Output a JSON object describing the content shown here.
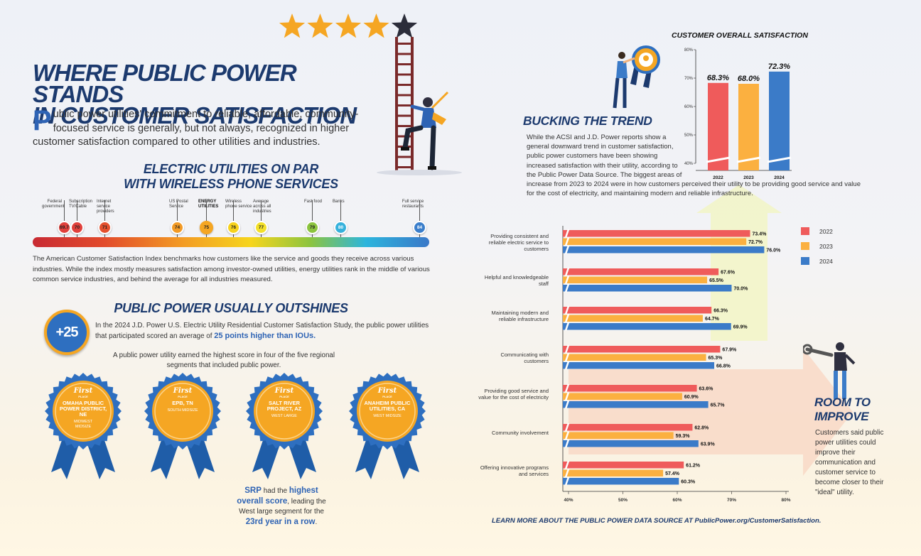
{
  "title_line1": "WHERE PUBLIC POWER STANDS",
  "title_line2": "IN CUSTOMER SATISFACTION",
  "intro_dropcap": "P",
  "intro_text": "ublic power utilities' commitment to reliable, affordable, community-focused service is generally, but not always, recognized in higher customer satisfaction compared to other utilities and industries.",
  "section1": {
    "title_line1": "ELECTRIC UTILITIES ON PAR",
    "title_line2": "WITH WIRELESS PHONE SERVICES",
    "items": [
      {
        "label": "Federal government",
        "value": "69.7",
        "color": "#e0403b",
        "bold": false
      },
      {
        "label": "Subscription TV/Cable",
        "value": "70",
        "color": "#e0403b",
        "bold": false
      },
      {
        "label": "Internet service providers",
        "value": "71",
        "color": "#e4502d",
        "bold": false
      },
      {
        "label": "US Postal Service",
        "value": "74",
        "color": "#f29a25",
        "bold": false
      },
      {
        "label": "ENERGY UTILITIES",
        "value": "75",
        "color": "#f5a623",
        "bold": true
      },
      {
        "label": "Wireless phone service",
        "value": "76",
        "color": "#f7d21c",
        "bold": false
      },
      {
        "label": "Average across all industries",
        "value": "77",
        "color": "#f3e02a",
        "bold": false
      },
      {
        "label": "Fast food",
        "value": "79",
        "color": "#8cc43f",
        "bold": false
      },
      {
        "label": "Banks",
        "value": "80",
        "color": "#36b1dc",
        "bold": false
      },
      {
        "label": "Full service restaurants",
        "value": "84",
        "color": "#3b7ecb",
        "bold": false
      }
    ],
    "paragraph": "The American Customer Satisfaction Index benchmarks how customers like the service and goods they receive across various industries. While the index mostly measures satisfaction among investor-owned utilities, energy utilities rank in the middle of various common service industries, and behind the average for all industries measured."
  },
  "section2": {
    "title": "PUBLIC POWER USUALLY OUTSHINES",
    "badge": "+25",
    "text_a": "In the 2024 J.D. Power U.S. Electric Utility Residential Customer Satisfaction Study, the public power utilities that participated scored an average of ",
    "text_b": "25 points higher than IOUs.",
    "subtext": "A public power utility earned the highest score in four of the five regional segments that included public power.",
    "ribbons": [
      {
        "first": "First",
        "place": "PLACE",
        "name": "OMAHA PUBLIC POWER DISTRICT, NE",
        "segment": "MIDWEST MIDSIZE"
      },
      {
        "first": "First",
        "place": "PLACE",
        "name": "EPB, TN",
        "segment": "SOUTH MIDSIZE"
      },
      {
        "first": "First",
        "place": "PLACE",
        "name": "SALT RIVER PROJECT, AZ",
        "segment": "WEST LARGE"
      },
      {
        "first": "First",
        "place": "PLACE",
        "name": "ANAHEIM PUBLIC UTILITIES, CA",
        "segment": "WEST MIDSIZE"
      }
    ],
    "srp_1": "SRP",
    "srp_2": " had the ",
    "srp_3": "highest overall score",
    "srp_4": ", leading the West large segment for the ",
    "srp_5": "23rd year in a row",
    "srp_6": "."
  },
  "bucking": {
    "title": "BUCKING THE TREND",
    "text": "While the ACSI and J.D. Power reports show a general downward trend in customer satisfaction, public power customers have been showing increased satisfaction with their utility, according to the Public Power Data Source. The biggest areas of increase from 2023 to 2024 were in how customers perceived their utility to be providing good service and value for the cost of electricity, and maintaining modern and reliable infrastructure."
  },
  "room": {
    "title_line1": "ROOM TO",
    "title_line2": "IMPROVE",
    "text": "Customers said public power utilities could improve their communication and customer service to become closer to their \"ideal\" utility."
  },
  "footer": "LEARN MORE ABOUT THE PUBLIC POWER DATA SOURCE  AT PublicPower.org/CustomerSatisfaction.",
  "colors": {
    "y2022": "#ef5b5b",
    "y2023": "#fbb040",
    "y2024": "#3b7bc8",
    "navy": "#1c3a6e"
  },
  "chart_data": [
    {
      "type": "bar",
      "title": "CUSTOMER OVERALL SATISFACTION",
      "categories": [
        "2022",
        "2023",
        "2024"
      ],
      "values": [
        68.3,
        68.0,
        72.3
      ],
      "value_labels": [
        "68.3%",
        "68.0%",
        "72.3%"
      ],
      "ylim": [
        40,
        80
      ],
      "yticks": [
        "80%",
        "70%",
        "60%",
        "50%",
        "40%"
      ],
      "grid": false
    },
    {
      "type": "bar",
      "orientation": "horizontal",
      "categories": [
        "Providing consistent and reliable electric service to customers",
        "Helpful and knowledgeable staff",
        "Maintaining modern and reliable infrastructure",
        "Communicating with customers",
        "Providing good service and value for the cost of electricity",
        "Community involvement",
        "Offering innovative programs and services"
      ],
      "series": [
        {
          "name": "2022",
          "values": [
            73.4,
            67.6,
            66.3,
            67.9,
            63.6,
            62.8,
            61.2
          ]
        },
        {
          "name": "2023",
          "values": [
            72.7,
            65.5,
            64.7,
            65.3,
            60.9,
            59.3,
            57.4
          ]
        },
        {
          "name": "2024",
          "values": [
            76.0,
            70.0,
            69.9,
            66.8,
            65.7,
            63.9,
            60.3
          ]
        }
      ],
      "xlim": [
        40,
        80
      ],
      "xticks": [
        "40%",
        "50%",
        "60%",
        "70%",
        "80%"
      ],
      "legend": "right",
      "grid": false
    }
  ]
}
